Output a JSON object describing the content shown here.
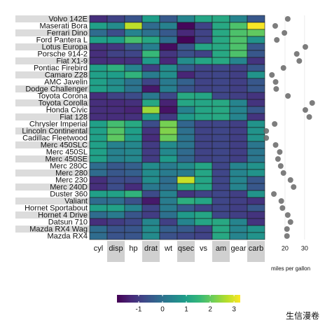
{
  "chart_data": [
    {
      "type": "heatmap",
      "rows": [
        "Volvo 142E",
        "Maserati Bora",
        "Ferrari Dino",
        "Ford Pantera L",
        "Lotus Europa",
        "Porsche 914-2",
        "Fiat X1-9",
        "Pontiac Firebird",
        "Camaro Z28",
        "AMC Javelin",
        "Dodge Challenger",
        "Toyota Corona",
        "Toyota Corolla",
        "Honda Civic",
        "Fiat 128",
        "Chrysler Imperial",
        "Lincoln Continental",
        "Cadillac Fleetwood",
        "Merc 450SLC",
        "Merc 450SL",
        "Merc 450SE",
        "Merc 280C",
        "Merc 280",
        "Merc 230",
        "Merc 240D",
        "Duster 360",
        "Valiant",
        "Hornet Sportabout",
        "Hornet 4 Drive",
        "Datsun 710",
        "Mazda RX4 Wag",
        "Mazda RX4"
      ],
      "columns": [
        "cyl",
        "disp",
        "hp",
        "drat",
        "wt",
        "qsec",
        "vs",
        "am",
        "gear",
        "carb"
      ],
      "values": [
        [
          -1.22,
          -0.89,
          -0.55,
          0.96,
          -0.45,
          0.42,
          1.12,
          1.19,
          0.42,
          -0.5
        ],
        [
          1.01,
          0.57,
          2.75,
          -0.11,
          0.36,
          -1.82,
          -0.87,
          1.19,
          1.78,
          3.21
        ],
        [
          -0.1,
          -0.69,
          0.41,
          0.04,
          -0.46,
          -1.31,
          -0.87,
          1.19,
          1.78,
          1.98
        ],
        [
          1.01,
          0.97,
          1.71,
          1.17,
          -0.05,
          -1.87,
          -0.87,
          1.19,
          1.78,
          0.74
        ],
        [
          -1.22,
          -1.09,
          -0.49,
          0.32,
          -1.74,
          -0.53,
          1.12,
          1.19,
          1.78,
          -0.5
        ],
        [
          -1.22,
          -0.89,
          -0.81,
          1.56,
          -1.1,
          -0.64,
          -0.87,
          1.19,
          1.78,
          -0.5
        ],
        [
          -1.22,
          -1.22,
          -1.18,
          0.9,
          -1.31,
          0.59,
          1.12,
          1.19,
          0.42,
          -1.12
        ],
        [
          1.01,
          1.37,
          0.41,
          -0.97,
          0.64,
          -0.45,
          -0.87,
          -0.81,
          -0.93,
          -0.5
        ],
        [
          1.01,
          0.96,
          1.43,
          0.25,
          0.64,
          -1.36,
          -0.87,
          -0.81,
          -0.93,
          0.74
        ],
        [
          1.01,
          0.59,
          0.05,
          -0.84,
          0.22,
          -0.31,
          -0.87,
          -0.81,
          -0.93,
          -0.5
        ],
        [
          1.01,
          0.7,
          0.05,
          -1.56,
          0.31,
          -0.55,
          -0.87,
          -0.81,
          -0.93,
          -0.5
        ],
        [
          -1.22,
          -0.89,
          -0.72,
          0.19,
          -0.77,
          1.21,
          1.12,
          -0.81,
          -0.93,
          -1.12
        ],
        [
          -1.22,
          -1.29,
          -1.19,
          1.17,
          -1.41,
          1.15,
          1.12,
          1.19,
          0.42,
          -1.12
        ],
        [
          -1.22,
          -1.25,
          -1.38,
          2.49,
          -1.64,
          0.38,
          1.12,
          1.19,
          0.42,
          -0.5
        ],
        [
          -1.22,
          -1.23,
          -1.18,
          0.9,
          -1.04,
          0.91,
          1.12,
          1.19,
          0.42,
          -1.12
        ],
        [
          1.01,
          1.69,
          1.21,
          -0.69,
          2.17,
          -0.24,
          -0.87,
          -0.81,
          -0.93,
          0.74
        ],
        [
          1.01,
          1.85,
          0.99,
          -1.12,
          2.26,
          -0.02,
          -0.87,
          -0.81,
          -0.93,
          0.74
        ],
        [
          1.01,
          1.95,
          0.85,
          -1.25,
          2.08,
          0.07,
          -0.87,
          -0.81,
          -0.93,
          0.74
        ],
        [
          1.01,
          0.36,
          0.49,
          -0.98,
          0.58,
          0.08,
          -0.87,
          -0.81,
          -0.93,
          0.12
        ],
        [
          1.01,
          0.36,
          0.49,
          -0.98,
          0.52,
          -0.14,
          -0.87,
          -0.81,
          -0.93,
          0.12
        ],
        [
          1.01,
          0.36,
          0.49,
          -0.98,
          0.87,
          -0.25,
          -0.87,
          -0.81,
          -0.93,
          0.12
        ],
        [
          -0.1,
          -0.51,
          -0.35,
          0.6,
          0.23,
          0.59,
          1.12,
          -0.81,
          0.42,
          0.74
        ],
        [
          -0.1,
          -0.51,
          -0.35,
          0.6,
          0.23,
          0.25,
          1.12,
          -0.81,
          0.42,
          0.74
        ],
        [
          -1.22,
          -0.73,
          -0.75,
          0.6,
          -0.07,
          2.83,
          1.12,
          -0.81,
          0.42,
          -0.5
        ],
        [
          -1.22,
          -0.68,
          -1.24,
          0.17,
          -0.03,
          1.2,
          1.12,
          -0.81,
          0.42,
          -0.5
        ],
        [
          1.01,
          1.04,
          1.43,
          -0.72,
          0.36,
          -1.12,
          -0.87,
          -0.81,
          -0.93,
          0.74
        ],
        [
          -0.1,
          -0.05,
          -0.61,
          -1.56,
          0.25,
          1.33,
          1.12,
          -0.81,
          -0.93,
          -1.12
        ],
        [
          1.01,
          1.04,
          0.41,
          -0.84,
          0.23,
          -0.46,
          -0.87,
          -0.81,
          -0.93,
          -0.5
        ],
        [
          -0.1,
          0.22,
          -0.54,
          -0.97,
          0.0,
          0.89,
          1.12,
          -0.81,
          -0.93,
          -1.12
        ],
        [
          -1.22,
          -0.99,
          -0.78,
          0.47,
          -0.92,
          0.43,
          1.12,
          1.19,
          0.42,
          -1.12
        ],
        [
          -0.1,
          -0.57,
          -0.54,
          0.57,
          -0.35,
          -0.46,
          -0.87,
          1.19,
          0.42,
          0.74
        ],
        [
          -0.1,
          -0.57,
          -0.54,
          0.57,
          -0.61,
          -0.78,
          -0.87,
          1.19,
          0.42,
          0.74
        ]
      ],
      "clim": [
        -1.91,
        3.26
      ],
      "colorbar_ticks": [
        -1,
        0,
        1,
        2,
        3
      ],
      "colormap": [
        "#440154",
        "#482878",
        "#3e4989",
        "#31688e",
        "#26828e",
        "#1f9e89",
        "#35b779",
        "#6ece58",
        "#b5de2b",
        "#fde725"
      ]
    },
    {
      "type": "dot",
      "values": [
        21.4,
        15.0,
        19.7,
        15.8,
        30.4,
        26.0,
        27.3,
        19.2,
        13.3,
        15.2,
        15.5,
        21.5,
        33.9,
        30.4,
        32.4,
        14.7,
        10.4,
        10.4,
        15.2,
        17.3,
        16.4,
        17.8,
        19.2,
        22.8,
        24.4,
        14.3,
        18.1,
        18.7,
        21.4,
        22.8,
        21.0,
        21.0
      ],
      "xlim": [
        10,
        34
      ],
      "xticks": [
        20,
        30
      ],
      "xlabel": "miles per gallon",
      "color": "#666666",
      "grid": true
    }
  ],
  "watermark": "生信漫卷"
}
